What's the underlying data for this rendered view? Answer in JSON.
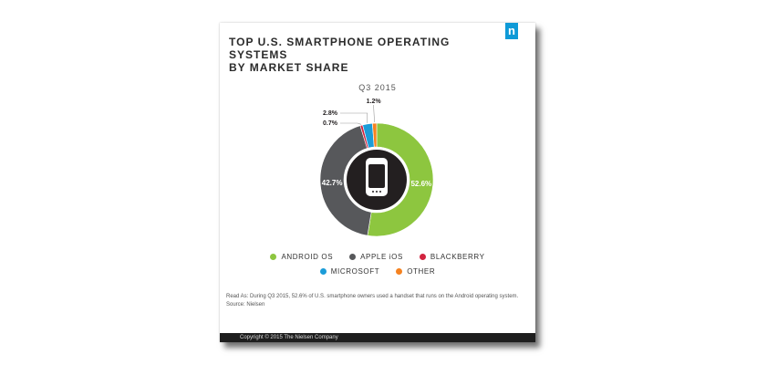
{
  "header": {
    "title_line1": "TOP U.S. SMARTPHONE OPERATING SYSTEMS",
    "title_line2": "BY MARKET SHARE",
    "logo": "n",
    "period": "Q3 2015"
  },
  "chart_data": {
    "type": "pie",
    "title": "TOP U.S. SMARTPHONE OPERATING SYSTEMS BY MARKET SHARE",
    "subtitle": "Q3 2015",
    "slices": [
      {
        "name": "ANDROID OS",
        "value": 52.6,
        "label": "52.6%",
        "color": "#8dc63f"
      },
      {
        "name": "APPLE iOS",
        "value": 42.7,
        "label": "42.7%",
        "color": "#57585b"
      },
      {
        "name": "BLACKBERRY",
        "value": 0.7,
        "label": "0.7%",
        "color": "#d2233f"
      },
      {
        "name": "MICROSOFT",
        "value": 2.8,
        "label": "2.8%",
        "color": "#1b9cd8"
      },
      {
        "name": "OTHER",
        "value": 1.2,
        "label": "1.2%",
        "color": "#f58220"
      }
    ],
    "center_icon": "smartphone-icon",
    "legend_position": "bottom"
  },
  "legend": {
    "row1": [
      {
        "label": "ANDROID OS",
        "color": "#8dc63f"
      },
      {
        "label": "APPLE iOS",
        "color": "#57585b"
      },
      {
        "label": "BLACKBERRY",
        "color": "#d2233f"
      }
    ],
    "row2": [
      {
        "label": "MICROSOFT",
        "color": "#1b9cd8"
      },
      {
        "label": "OTHER",
        "color": "#f58220"
      }
    ]
  },
  "notes": {
    "read_as": "Read As: During Q3 2015, 52.6% of U.S. smartphone owners used a handset that runs on the Android operating system.",
    "source": "Source: Nielsen"
  },
  "footer": {
    "copyright": "Copyright © 2015 The Nielsen Company"
  }
}
